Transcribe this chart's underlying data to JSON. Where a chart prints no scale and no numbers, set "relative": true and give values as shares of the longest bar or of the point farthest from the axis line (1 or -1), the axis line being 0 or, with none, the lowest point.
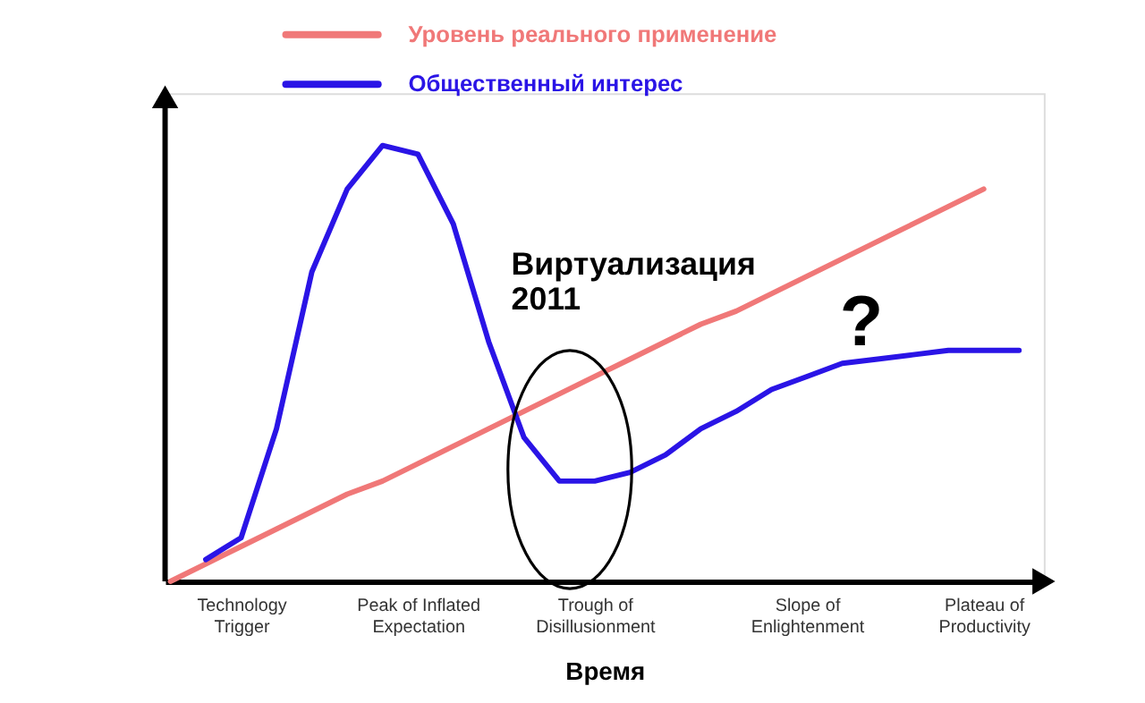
{
  "chart_data": {
    "type": "line",
    "relative": true,
    "xlabel": "Время",
    "legend": "top",
    "line_style": "solid",
    "marker": "none",
    "grid": false,
    "categories": [
      null,
      null,
      "Technology\nTrigger",
      null,
      null,
      null,
      null,
      "Peak of Inflated\nExpectation",
      null,
      null,
      null,
      null,
      "Trough of\nDisillusionment",
      null,
      null,
      null,
      null,
      null,
      "Slope of\nEnlightenment",
      null,
      null,
      null,
      null,
      "Plateau of\nProductivity",
      null
    ],
    "series": [
      {
        "name": "Уровень реального применение",
        "color": "#f07878",
        "values": [
          0,
          0.04,
          0.08,
          0.12,
          0.16,
          0.2,
          0.23,
          0.27,
          0.31,
          0.35,
          0.39,
          0.43,
          0.47,
          0.51,
          0.55,
          0.59,
          0.62,
          0.66,
          0.7,
          0.74,
          0.78,
          0.82,
          0.86,
          0.9,
          null
        ]
      },
      {
        "name": "Общественный интерес",
        "color": "#2a14e6",
        "values": [
          null,
          0.05,
          0.1,
          0.35,
          0.71,
          0.9,
          1.0,
          0.98,
          0.82,
          0.55,
          0.33,
          0.23,
          0.23,
          0.25,
          0.29,
          0.35,
          0.39,
          0.44,
          0.47,
          0.5,
          0.51,
          0.52,
          0.53,
          0.53,
          0.53
        ]
      }
    ],
    "annotations": [
      "Виртуализация\n2011",
      "?"
    ]
  }
}
